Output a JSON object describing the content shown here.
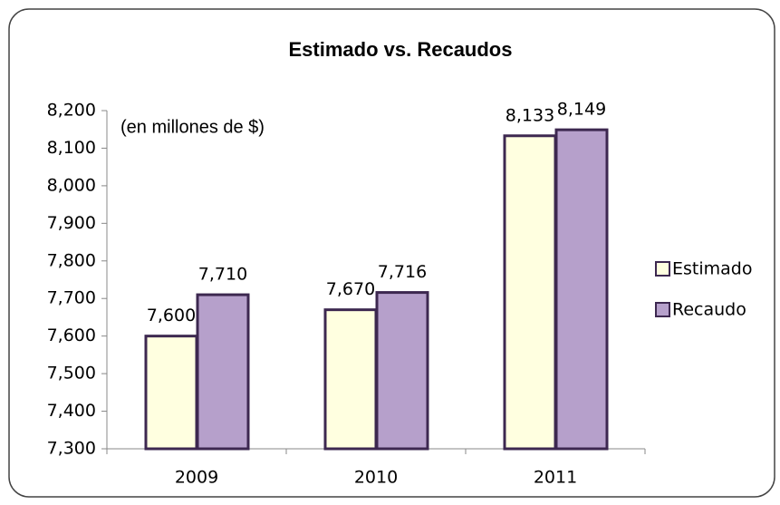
{
  "chart_data": {
    "type": "bar",
    "title": "Estimado vs. Recaudos",
    "annotation": "(en millones de $)",
    "categories": [
      "2009",
      "2010",
      "2011"
    ],
    "series": [
      {
        "name": "Estimado",
        "color": "#ffffe0",
        "values": [
          7600,
          7670,
          8133
        ],
        "value_labels": [
          "7,600",
          "7,670",
          "8,133"
        ]
      },
      {
        "name": "Recaudo",
        "color": "#b6a0cb",
        "values": [
          7710,
          7716,
          8149
        ],
        "value_labels": [
          "7,710",
          "7,716",
          "8,149"
        ]
      }
    ],
    "ylim": [
      7300,
      8200
    ],
    "yticks": [
      {
        "value": 7300,
        "label": "7,300"
      },
      {
        "value": 7400,
        "label": "7,400"
      },
      {
        "value": 7500,
        "label": "7,500"
      },
      {
        "value": 7600,
        "label": "7,600"
      },
      {
        "value": 7700,
        "label": "7,700"
      },
      {
        "value": 7800,
        "label": "7,800"
      },
      {
        "value": 7900,
        "label": "7,900"
      },
      {
        "value": 8000,
        "label": "8,000"
      },
      {
        "value": 8100,
        "label": "8,100"
      },
      {
        "value": 8200,
        "label": "8,200"
      }
    ],
    "grid": false,
    "legend": "right"
  }
}
